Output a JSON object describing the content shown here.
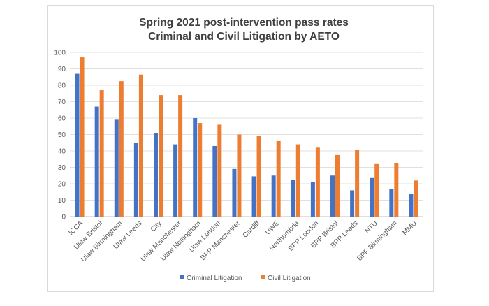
{
  "chart_data": {
    "type": "bar",
    "title_lines": [
      "Spring 2021 post-intervention pass rates",
      "Criminal and Civil Litigation by AETO"
    ],
    "xlabel": "",
    "ylabel": "",
    "ylim": [
      0,
      100
    ],
    "yticks": [
      0,
      10,
      20,
      30,
      40,
      50,
      60,
      70,
      80,
      90,
      100
    ],
    "grid": true,
    "legend_position": "bottom",
    "categories": [
      "ICCA",
      "Ulaw Bristol",
      "Ulaw Birmingham",
      "Ulaw Leeds",
      "City",
      "Ulaw Manchester",
      "Ulaw Nottingham",
      "Ulaw London",
      "BPP Manchester",
      "Cardiff",
      "UWE",
      "Northumbria",
      "BPP London",
      "BPP Bristol",
      "BPP Leeds",
      "NTU",
      "BPP Birmingham",
      "MMU"
    ],
    "series": [
      {
        "name": "Criminal Litigation",
        "color": "#4472c4",
        "values": [
          87,
          67,
          59,
          45,
          51,
          44,
          60,
          43,
          29,
          24.5,
          25,
          22.5,
          21,
          25,
          16,
          23.5,
          17,
          14
        ]
      },
      {
        "name": "Civil Litigation",
        "color": "#ed7d31",
        "values": [
          97,
          77,
          82.5,
          86.5,
          74,
          74,
          57,
          56,
          50,
          49,
          46,
          44,
          42,
          37.5,
          40.5,
          32,
          32.5,
          22
        ]
      }
    ]
  }
}
